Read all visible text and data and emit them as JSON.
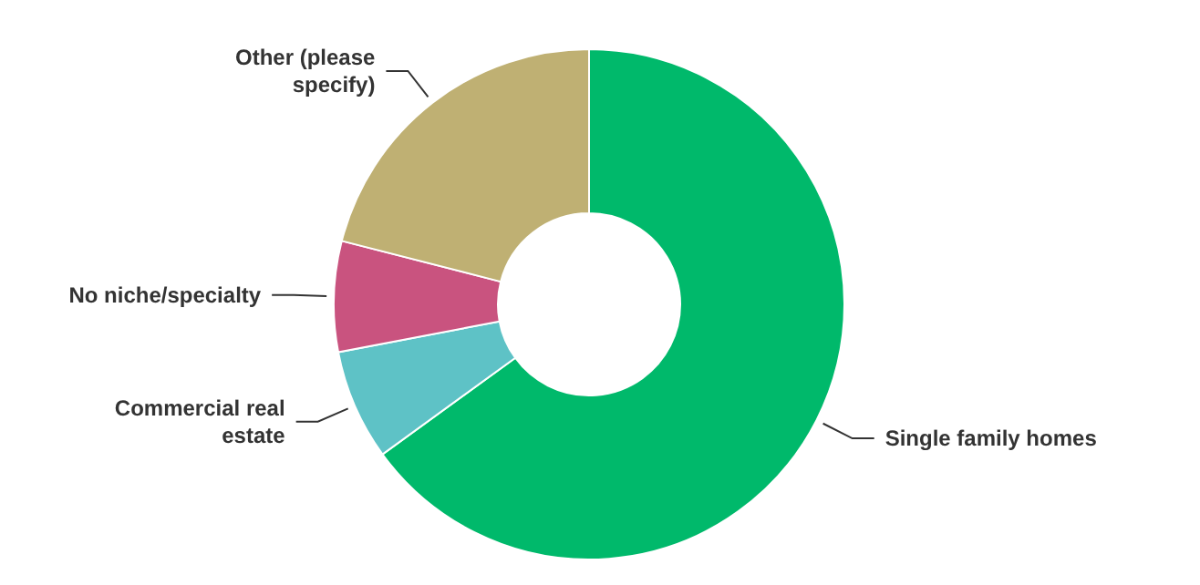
{
  "chart_data": {
    "type": "donut",
    "categories": [
      "Single family homes",
      "Commercial real estate",
      "No niche/specialty",
      "Other (please specify)"
    ],
    "values": [
      65,
      7,
      7,
      21
    ],
    "colors": [
      "#00b96b",
      "#5ec2c6",
      "#c9537f",
      "#bfb073"
    ],
    "legend": false
  }
}
